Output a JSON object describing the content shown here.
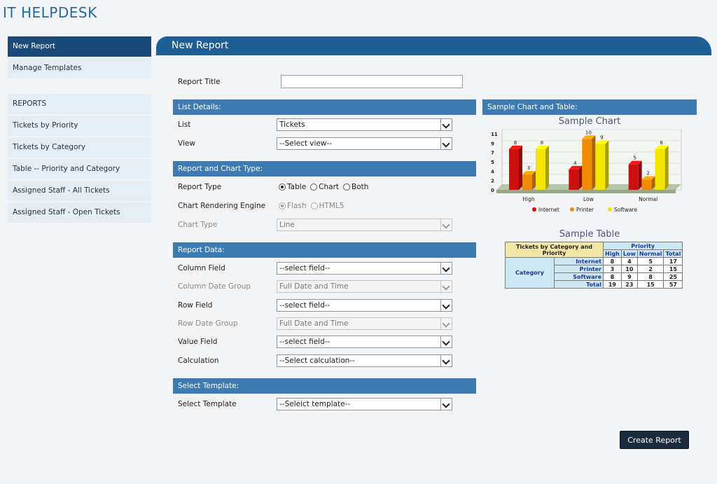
{
  "app": {
    "title": "IT HELPDESK"
  },
  "sidebar": {
    "top_items": [
      {
        "label": "New Report"
      },
      {
        "label": "Manage Templates"
      }
    ],
    "reports_heading": "REPORTS",
    "report_items": [
      {
        "label": "Tickets by Priority"
      },
      {
        "label": "Tickets by Category"
      },
      {
        "label": "Table -- Priority and Category"
      },
      {
        "label": "Assigned Staff - All Tickets"
      },
      {
        "label": "Assigned Staff - Open Tickets"
      }
    ]
  },
  "main": {
    "header": "New Report",
    "report_title_label": "Report Title",
    "report_title_value": ""
  },
  "list_details": {
    "heading": "List Details:",
    "list_label": "List",
    "list_value": "Tickets",
    "view_label": "View",
    "view_value": "--Select view--"
  },
  "report_type": {
    "heading": "Report and Chart Type:",
    "type_label": "Report Type",
    "type_options": [
      "Table",
      "Chart",
      "Both"
    ],
    "engine_label": "Chart Rendering Engine",
    "engine_options": [
      "Flash",
      "HTML5"
    ],
    "chart_type_label": "Chart Type",
    "chart_type_value": "Line"
  },
  "report_data": {
    "heading": "Report Data:",
    "column_field_label": "Column Field",
    "column_field_value": "--select field--",
    "column_date_group_label": "Column Date Group",
    "column_date_group_value": "Full Date and Time",
    "row_field_label": "Row Field",
    "row_field_value": "--select field--",
    "row_date_group_label": "Row Date Group",
    "row_date_group_value": "Full Date and Time",
    "value_field_label": "Value Field",
    "value_field_value": "--select field--",
    "calculation_label": "Calculation",
    "calculation_value": "--Select calculation--"
  },
  "template": {
    "heading": "Select Template:",
    "label": "Select Template",
    "value": "--Seleict template--"
  },
  "sample": {
    "heading": "Sample Chart and Table:",
    "chart_title": "Sample Chart",
    "table_title": "Sample Table",
    "table": {
      "corner": "Tickets by Category and Priority",
      "priority_header": "Priority",
      "columns": [
        "High",
        "Low",
        "Normal",
        "Total"
      ],
      "category_header": "Category",
      "rows": [
        {
          "name": "Internet",
          "values": [
            "8",
            "4",
            "5",
            "17"
          ]
        },
        {
          "name": "Printer",
          "values": [
            "3",
            "10",
            "2",
            "15"
          ]
        },
        {
          "name": "Software",
          "values": [
            "8",
            "9",
            "8",
            "25"
          ]
        },
        {
          "name": "Total",
          "values": [
            "19",
            "23",
            "15",
            "57"
          ]
        }
      ]
    }
  },
  "chart_data": {
    "type": "bar",
    "categories": [
      "High",
      "Low",
      "Normal"
    ],
    "series": [
      {
        "name": "Internet",
        "values": [
          8,
          4,
          5
        ],
        "color": "#cc1010"
      },
      {
        "name": "Printer",
        "values": [
          3,
          10,
          2
        ],
        "color": "#f08c00"
      },
      {
        "name": "Software",
        "values": [
          8,
          9,
          8
        ],
        "color": "#f2e600"
      }
    ],
    "yticks": [
      "11",
      "9",
      "7",
      "5",
      "4",
      "2",
      "0"
    ],
    "ylim": [
      0,
      11
    ],
    "legend_position": "bottom"
  },
  "actions": {
    "create_label": "Create Report"
  }
}
